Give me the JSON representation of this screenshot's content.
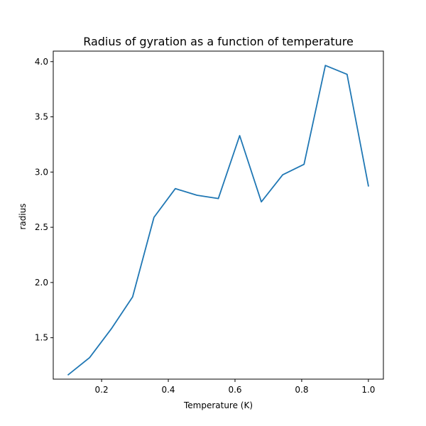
{
  "chart_data": {
    "type": "line",
    "title": "Radius of gyration as a function of temperature",
    "xlabel": "Temperature (K)",
    "ylabel": "radius",
    "xlim": [
      0.055,
      1.045
    ],
    "ylim": [
      1.125,
      4.095
    ],
    "xticks": [
      0.2,
      0.4,
      0.6,
      0.8,
      1.0
    ],
    "xtick_labels": [
      "0.2",
      "0.4",
      "0.6",
      "0.8",
      "1.0"
    ],
    "yticks": [
      1.5,
      2.0,
      2.5,
      3.0,
      3.5,
      4.0
    ],
    "ytick_labels": [
      "1.5",
      "2.0",
      "2.5",
      "3.0",
      "3.5",
      "4.0"
    ],
    "grid": false,
    "series": [
      {
        "color": "#1f77b4",
        "x": [
          0.1,
          0.164,
          0.229,
          0.293,
          0.357,
          0.421,
          0.486,
          0.55,
          0.614,
          0.679,
          0.743,
          0.807,
          0.871,
          0.936,
          1.0
        ],
        "y": [
          1.165,
          1.32,
          1.58,
          1.87,
          2.59,
          2.85,
          2.79,
          2.76,
          3.33,
          2.73,
          2.975,
          3.07,
          3.965,
          3.885,
          2.875
        ]
      }
    ]
  }
}
